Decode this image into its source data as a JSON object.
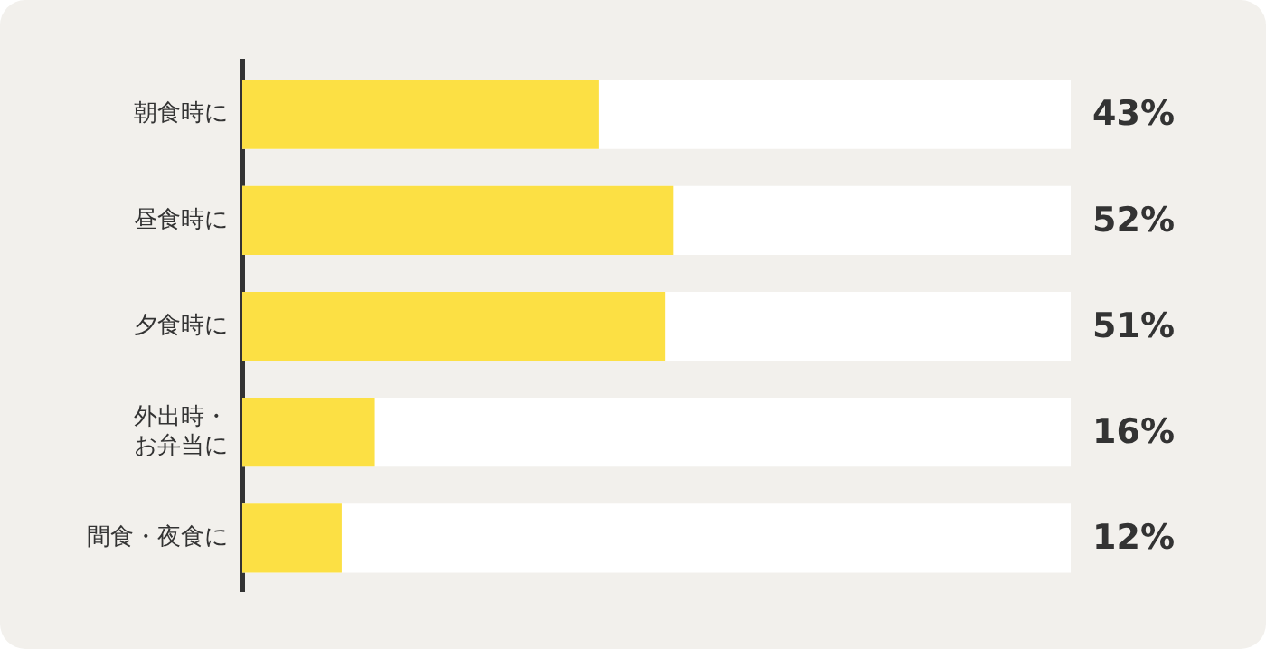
{
  "chart_data": {
    "type": "bar",
    "orientation": "horizontal",
    "categories": [
      "朝食時に",
      "昼食時に",
      "夕食時に",
      "外出時・お弁当に",
      "間食・夜食に"
    ],
    "values": [
      43,
      52,
      51,
      16,
      12
    ],
    "color": "#fce044",
    "value_labels": [
      "43%",
      "52%",
      "51%",
      "16%",
      "12%"
    ],
    "xlim": [
      0,
      100
    ],
    "tick_labels": "y",
    "legend": false
  }
}
